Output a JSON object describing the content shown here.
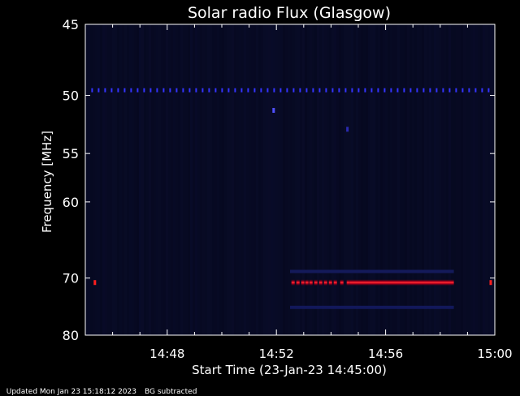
{
  "chart_data": {
    "type": "heatmap",
    "title": "Solar radio Flux (Glasgow)",
    "xlabel": "Start Time (23-Jan-23 14:45:00)",
    "ylabel": "Frequency [MHz]",
    "x_axis": {
      "unit": "minutes after 14:45:00",
      "range": [
        0,
        15
      ],
      "ticks": [
        {
          "value": 3,
          "label": "14:48"
        },
        {
          "value": 7,
          "label": "14:52"
        },
        {
          "value": 11,
          "label": "14:56"
        },
        {
          "value": 15,
          "label": "15:00"
        }
      ]
    },
    "y_axis": {
      "unit": "MHz",
      "scale": "reciprocal",
      "range": [
        45,
        80
      ],
      "inverted": true,
      "ticks": [
        {
          "value": 45,
          "label": "45"
        },
        {
          "value": 50,
          "label": "50"
        },
        {
          "value": 55,
          "label": "55"
        },
        {
          "value": 60,
          "label": "60"
        },
        {
          "value": 70,
          "label": "70"
        },
        {
          "value": 80,
          "label": "80"
        }
      ]
    },
    "background_color": "#06081e",
    "features": [
      {
        "kind": "dotted_line",
        "frequency": 49.6,
        "x_start": 0.25,
        "x_end": 14.9,
        "color": "#3434ff"
      },
      {
        "kind": "dot",
        "x": 6.9,
        "frequency": 51.2,
        "color": "#5050ff"
      },
      {
        "kind": "dot",
        "x": 9.6,
        "frequency": 52.8,
        "color": "#2a2ab0"
      },
      {
        "kind": "dot",
        "x": 0.35,
        "frequency": 70.7,
        "color": "#ff1e1e"
      },
      {
        "kind": "dot",
        "x": 14.85,
        "frequency": 70.7,
        "color": "#ff1e1e"
      },
      {
        "kind": "band",
        "frequency": 70.7,
        "x_start": 7.55,
        "x_end": 13.5,
        "color": "#ff1e1e"
      },
      {
        "kind": "faint_band",
        "frequency": 69.0,
        "x_start": 7.5,
        "x_end": 13.5,
        "color": "#141a5a"
      },
      {
        "kind": "faint_band",
        "frequency": 74.8,
        "x_start": 7.5,
        "x_end": 13.5,
        "color": "#12185a"
      }
    ],
    "grid": false,
    "legend": "none"
  },
  "footer": {
    "updated": "Updated Mon Jan 23 15:18:12 2023",
    "mode": "BG subtracted"
  }
}
